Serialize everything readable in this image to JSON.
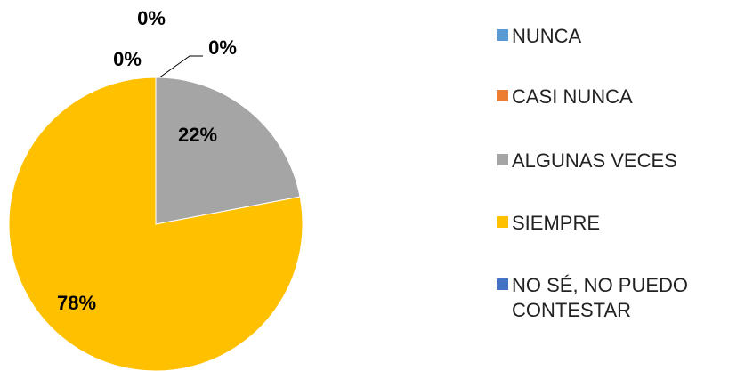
{
  "chart_data": {
    "type": "pie",
    "categories": [
      "NUNCA",
      "CASI NUNCA",
      "ALGUNAS VECES",
      "SIEMPRE",
      "NO SÉ, NO PUEDO CONTESTAR"
    ],
    "values": [
      0,
      0,
      22,
      78,
      0
    ],
    "value_labels": [
      "0%",
      "0%",
      "22%",
      "78%",
      "0%"
    ],
    "colors": [
      "#5b9bd5",
      "#ed7d31",
      "#a5a5a5",
      "#ffc000",
      "#4472c4"
    ],
    "legend": "right"
  }
}
